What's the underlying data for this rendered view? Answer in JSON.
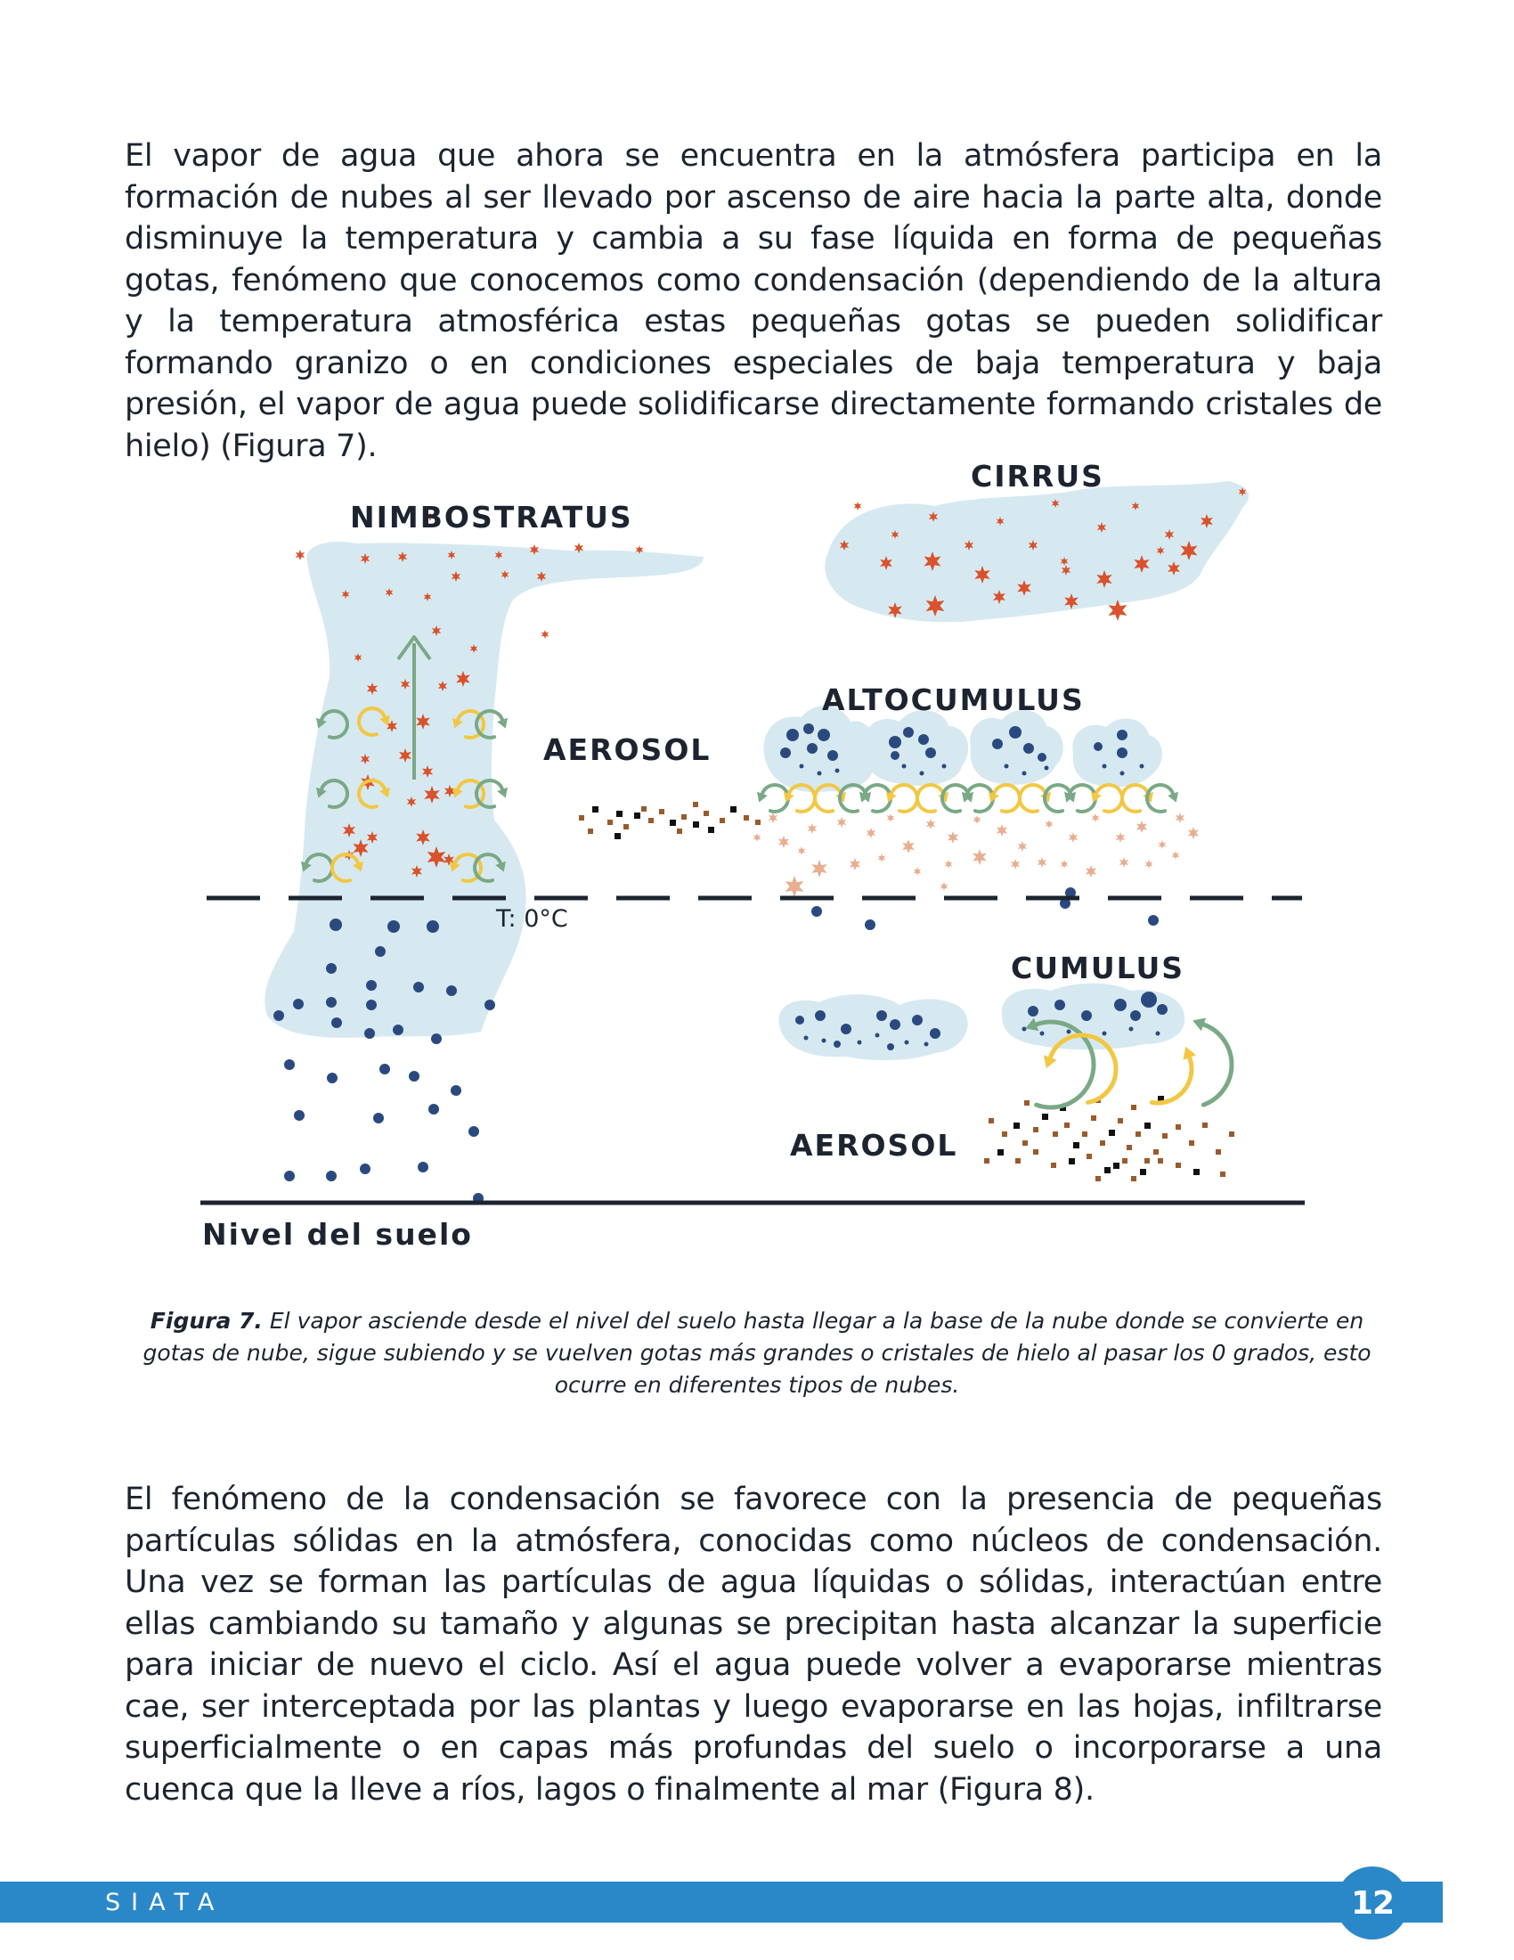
{
  "paragraphs": {
    "intro": "El vapor de agua que ahora se encuentra en la atmósfera participa en la formación de nubes al ser llevado  por ascenso de aire hacia la parte alta, donde disminuye la temperatura y cambia a su fase líquida en forma de pequeñas gotas, fenómeno que conocemos como condensación (dependiendo de la altura y la temperatura atmosférica estas pequeñas gotas se pueden solidificar formando granizo o en condiciones especiales de baja temperatura y baja presión, el vapor de agua puede solidificarse directamente formando cristales de hielo) (Figura 7).",
    "condensation": "El fenómeno de la condensación se favorece con la presencia de pequeñas partículas sólidas en la atmósfera, conocidas como núcleos de condensación. Una vez se forman las partículas de agua líquidas o sólidas, interactúan entre ellas cambiando su tamaño y algunas se precipitan hasta alcanzar la superficie para iniciar de nuevo el ciclo. Así el agua puede volver a evaporarse mientras cae, ser interceptada por las plantas y luego evaporarse en las hojas, infiltrarse superficialmente o en capas más profundas del suelo o incorporarse a una cuenca que la lleve a ríos, lagos o finalmente al mar (Figura 8)."
  },
  "figure": {
    "labels": {
      "nimbostratus": "NIMBOSTRATUS",
      "cirrus": "CIRRUS",
      "altocumulus": "ALTOCUMULUS",
      "aerosol_top": "AEROSOL",
      "cumulus": "CUMULUS",
      "aerosol_bottom": "AEROSOL",
      "freezing_level": "T: 0°C",
      "ground": "Nivel del suelo"
    },
    "colors": {
      "cloud": "#d6e9f1",
      "ice": "#d9522c",
      "ice_light": "#e8ae90",
      "drop": "#2a4a7f",
      "arrow_green": "#7aa985",
      "arrow_yellow": "#f2c744",
      "aerosol_brown": "#9a5a2c",
      "aerosol_dark": "#111111"
    },
    "caption": {
      "label": "Figura 7.",
      "text": " El vapor asciende desde el nivel del suelo hasta llegar a la base de la nube donde se convierte en gotas de nube, sigue subiendo y se vuelven gotas más grandes o cristales de hielo al pasar los 0 grados, esto ocurre en diferentes tipos de nubes."
    }
  },
  "footer": {
    "brand": "SIATA",
    "page_number": "12"
  }
}
